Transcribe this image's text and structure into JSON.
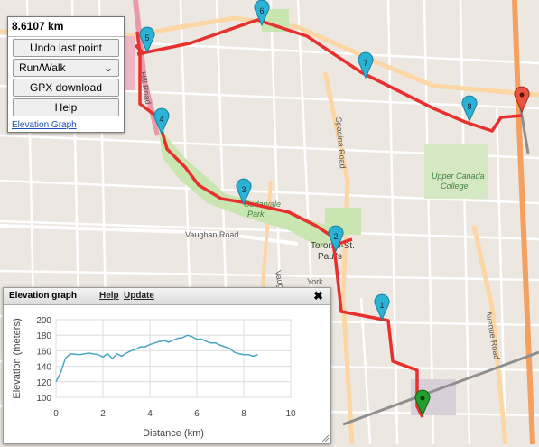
{
  "distance": "8.6107 km",
  "controls": {
    "undo_label": "Undo last point",
    "mode_selected": "Run/Walk",
    "gpx_label": "GPX download",
    "help_label": "Help",
    "elevation_link": "Elevation Graph"
  },
  "map_labels": {
    "toronto_st_pauls": [
      "Toronto-St.",
      "Paul's"
    ],
    "cedarvale_park": [
      "Cedarvale",
      "Park"
    ],
    "upper_canada_college": [
      "Upper Canada",
      "College"
    ],
    "vaughan_road": "Vaughan Road",
    "vaughan_partial": "Vaugha",
    "york_partial": "York",
    "spadina_road": "Spadina Road",
    "avenue_road": "Avenue Road",
    "hill_road": "Hill Road"
  },
  "markers": [
    "1",
    "2",
    "3",
    "4",
    "5",
    "6",
    "7",
    "8"
  ],
  "colors": {
    "route": "#e8302e",
    "marker": "#2bb3d6",
    "start": "#22a02f",
    "end": "#e8543e",
    "profile": "#4aa6c3"
  },
  "elevation_panel": {
    "title": "Elevation graph",
    "help": "Help",
    "update": "Update",
    "close": "✖"
  },
  "chart_data": {
    "type": "line",
    "xlabel": "Distance (km)",
    "ylabel": "Elevation (meters)",
    "xlim": [
      0,
      10
    ],
    "ylim": [
      100,
      200
    ],
    "xticks": [
      0,
      2,
      4,
      6,
      8,
      10
    ],
    "yticks": [
      100,
      120,
      140,
      160,
      180,
      200
    ],
    "grid": true,
    "x": [
      0,
      0.2,
      0.4,
      0.6,
      1.0,
      1.4,
      1.8,
      2.0,
      2.2,
      2.4,
      2.6,
      2.8,
      3.0,
      3.2,
      3.4,
      3.6,
      3.8,
      4.0,
      4.2,
      4.4,
      4.6,
      4.8,
      5.0,
      5.2,
      5.4,
      5.6,
      5.8,
      6.0,
      6.2,
      6.4,
      6.6,
      6.8,
      7.0,
      7.2,
      7.4,
      7.6,
      7.8,
      8.0,
      8.2,
      8.4,
      8.6
    ],
    "y": [
      120,
      132,
      150,
      156,
      155,
      157,
      155,
      152,
      156,
      150,
      156,
      153,
      157,
      160,
      162,
      165,
      165,
      168,
      170,
      172,
      173,
      171,
      174,
      176,
      177,
      180,
      178,
      175,
      175,
      172,
      170,
      170,
      167,
      165,
      163,
      158,
      156,
      155,
      155,
      153,
      155
    ]
  }
}
